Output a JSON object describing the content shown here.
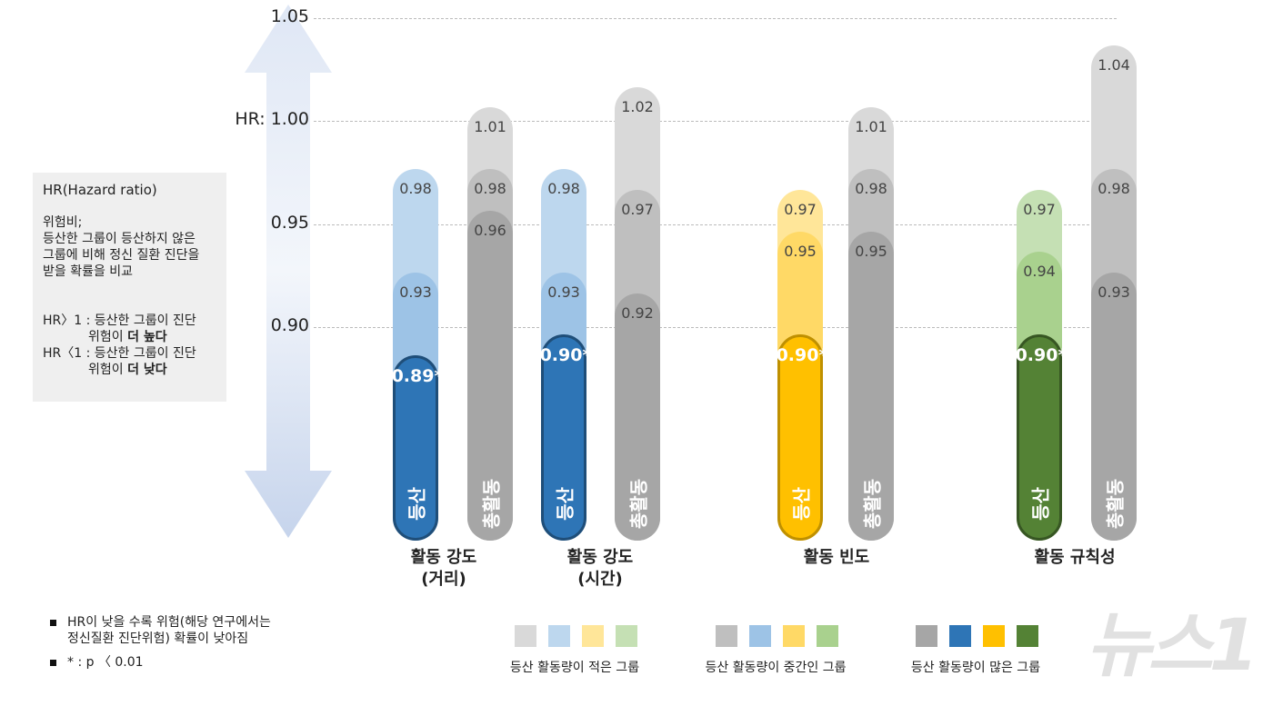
{
  "chart_data": {
    "type": "bar",
    "title": "",
    "ylabel": "HR",
    "ylim": [
      0.88,
      1.05
    ],
    "yticks": [
      {
        "value": 1.05,
        "label": "1.05"
      },
      {
        "value": 1.0,
        "label": "HR: 1.00"
      },
      {
        "value": 0.95,
        "label": "0.95"
      },
      {
        "value": 0.9,
        "label": "0.90"
      }
    ],
    "grid": true,
    "levels": [
      "등산 활동량이 적은 그룹",
      "등산 활동량이 중간인 그룹",
      "등산 활동량이 많은 그룹"
    ],
    "groups": [
      {
        "label_line1": "활동 강도",
        "label_line2": "(거리)",
        "color_theme": "blue",
        "bars": [
          {
            "name": "등산",
            "values": [
              0.98,
              0.93,
              0.89
            ],
            "labels": [
              "0.98",
              "0.93",
              "0.89*"
            ]
          },
          {
            "name": "총활동",
            "values": [
              1.01,
              0.98,
              0.96
            ],
            "labels": [
              "1.01",
              "0.98",
              "0.96"
            ]
          }
        ]
      },
      {
        "label_line1": "활동 강도",
        "label_line2": "(시간)",
        "color_theme": "blue",
        "bars": [
          {
            "name": "등산",
            "values": [
              0.98,
              0.93,
              0.9
            ],
            "labels": [
              "0.98",
              "0.93",
              "0.90*"
            ]
          },
          {
            "name": "총활동",
            "values": [
              1.02,
              0.97,
              0.92
            ],
            "labels": [
              "1.02",
              "0.97",
              "0.92"
            ]
          }
        ]
      },
      {
        "label_line1": "활동 빈도",
        "label_line2": "",
        "color_theme": "yellow",
        "bars": [
          {
            "name": "등산",
            "values": [
              0.97,
              0.95,
              0.9
            ],
            "labels": [
              "0.97",
              "0.95",
              "0.90*"
            ]
          },
          {
            "name": "총활동",
            "values": [
              1.01,
              0.98,
              0.95
            ],
            "labels": [
              "1.01",
              "0.98",
              "0.95"
            ]
          }
        ]
      },
      {
        "label_line1": "활동 규칙성",
        "label_line2": "",
        "color_theme": "green",
        "bars": [
          {
            "name": "등산",
            "values": [
              0.97,
              0.94,
              0.9
            ],
            "labels": [
              "0.97",
              "0.94",
              "0.90*"
            ]
          },
          {
            "name": "총활동",
            "values": [
              1.04,
              0.98,
              0.93
            ],
            "labels": [
              "1.04",
              "0.98",
              "0.93"
            ]
          }
        ]
      }
    ],
    "colors": {
      "gray": [
        "#d9d9d9",
        "#bfbfbf",
        "#a6a6a6"
      ],
      "blue": [
        "#bdd7ee",
        "#9dc3e6",
        "#2e75b6"
      ],
      "yellow": [
        "#ffe699",
        "#ffd966",
        "#ffc000"
      ],
      "green": [
        "#c5e0b4",
        "#a9d18e",
        "#548235"
      ],
      "borders": {
        "blue": "#1f4e79",
        "yellow": "#bf9000",
        "green": "#375623"
      }
    },
    "significance_note": "* : p < 0.01"
  },
  "infobox": {
    "title": "HR(Hazard ratio)",
    "def_1": "위험비;",
    "def_2": "등산한 그룹이 등산하지 않은",
    "def_3": "그룹에 비해 정신 질환 진단을",
    "def_4": "받을 확률을 비교",
    "gt_prefix": "HR〉1 : 등산한 그룹이 진단",
    "gt_line2a": "위험이 ",
    "gt_line2b": "더 높다",
    "lt_prefix": "HR〈1 : 등산한 그룹이 진단",
    "lt_line2a": "위험이 ",
    "lt_line2b": "더 낮다"
  },
  "notes": {
    "n1_line1": "HR이 낮을 수록 위험(해당 연구에서는",
    "n1_line2": "정신질환 진단위험) 확률이 낮아짐",
    "n2": "* : p 〈 0.01"
  },
  "logo": "뉴스1"
}
